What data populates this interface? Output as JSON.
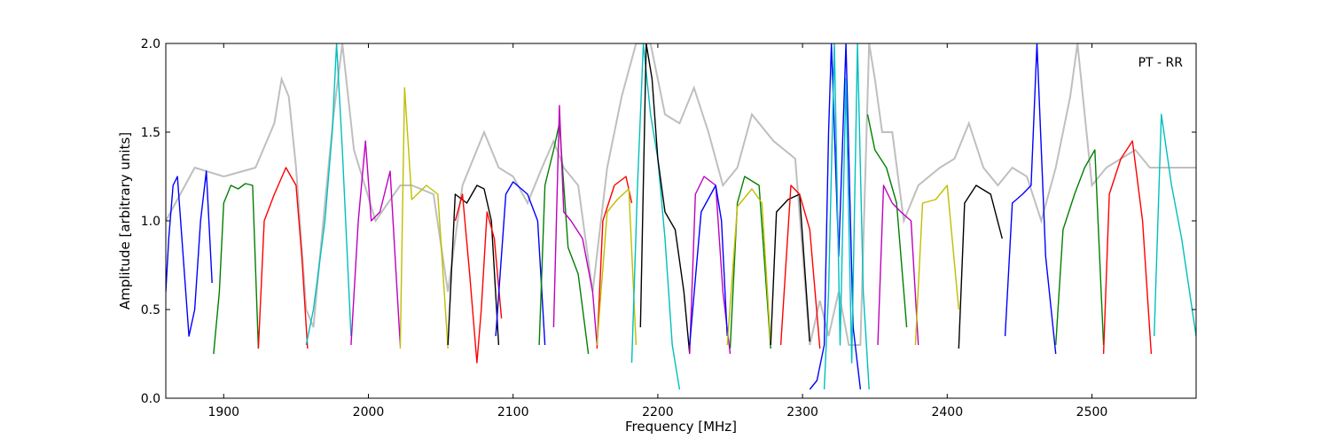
{
  "chart_data": {
    "type": "line",
    "title": "",
    "annotation": "PT - RR",
    "xlabel": "Frequency [MHz]",
    "ylabel": "Amplitude [arbitrary units]",
    "xlim": [
      1860,
      2572
    ],
    "ylim": [
      0,
      2.0
    ],
    "xticks": [
      1900,
      2000,
      2100,
      2200,
      2300,
      2400,
      2500
    ],
    "xtick_labels": [
      "1900",
      "2000",
      "2100",
      "2200",
      "2300",
      "2400",
      "2500"
    ],
    "yticks": [
      0,
      0.5,
      1.0,
      1.5,
      2.0
    ],
    "ytick_labels": [
      "0.0",
      "0.5",
      "1.0",
      "1.5",
      "2.0"
    ],
    "grid": false,
    "background_trace_color": "#bfbfbf",
    "background_trace": {
      "x": [
        1860,
        1880,
        1900,
        1922,
        1935,
        1940,
        1945,
        1950,
        1957,
        1962,
        1970,
        1976,
        1982,
        1990,
        2005,
        2022,
        2030,
        2045,
        2055,
        2065,
        2080,
        2090,
        2100,
        2110,
        2120,
        2128,
        2135,
        2145,
        2155,
        2165,
        2175,
        2185,
        2195,
        2205,
        2215,
        2225,
        2235,
        2245,
        2255,
        2265,
        2280,
        2295,
        2305,
        2312,
        2318,
        2325,
        2332,
        2340,
        2346,
        2350,
        2355,
        2362,
        2370,
        2380,
        2395,
        2405,
        2415,
        2425,
        2435,
        2445,
        2455,
        2465,
        2475,
        2485,
        2490,
        2500,
        2510,
        2520,
        2530,
        2540,
        2572
      ],
      "y": [
        1.0,
        1.3,
        1.25,
        1.3,
        1.55,
        1.8,
        1.7,
        1.3,
        0.5,
        0.4,
        1.1,
        1.6,
        2.0,
        1.4,
        1.0,
        1.2,
        1.2,
        1.15,
        0.6,
        1.2,
        1.5,
        1.3,
        1.25,
        1.1,
        1.3,
        1.45,
        1.3,
        1.2,
        0.6,
        1.3,
        1.7,
        2.0,
        2.0,
        1.6,
        1.55,
        1.75,
        1.5,
        1.2,
        1.3,
        1.6,
        1.45,
        1.35,
        0.3,
        0.55,
        0.35,
        0.6,
        0.3,
        0.3,
        2.0,
        1.8,
        1.5,
        1.5,
        1.0,
        1.2,
        1.3,
        1.35,
        1.55,
        1.3,
        1.2,
        1.3,
        1.25,
        1.0,
        1.3,
        1.7,
        2.0,
        1.2,
        1.3,
        1.35,
        1.4,
        1.3,
        1.3
      ]
    },
    "series": [
      {
        "color": "#0000ff",
        "x": [
          1860,
          1862,
          1865,
          1868,
          1872,
          1876,
          1880,
          1884,
          1888,
          1892
        ],
        "y": [
          0.6,
          0.9,
          1.2,
          1.25,
          0.8,
          0.35,
          0.5,
          1.0,
          1.28,
          0.65
        ]
      },
      {
        "color": "#008000",
        "x": [
          1893,
          1897,
          1900,
          1905,
          1910,
          1915,
          1920,
          1924
        ],
        "y": [
          0.25,
          0.6,
          1.1,
          1.2,
          1.18,
          1.21,
          1.2,
          0.28
        ]
      },
      {
        "color": "#ff0000",
        "x": [
          1924,
          1928,
          1935,
          1943,
          1950,
          1954,
          1958
        ],
        "y": [
          0.28,
          1.0,
          1.15,
          1.3,
          1.2,
          0.8,
          0.28
        ]
      },
      {
        "color": "#00bfbf",
        "x": [
          1957,
          1962,
          1970,
          1975,
          1978,
          1982,
          1988
        ],
        "y": [
          0.3,
          0.5,
          1.0,
          1.5,
          2.0,
          1.4,
          0.35
        ]
      },
      {
        "color": "#bf00bf",
        "x": [
          1988,
          1993,
          1998,
          2002,
          2008,
          2015,
          2022
        ],
        "y": [
          0.3,
          1.0,
          1.45,
          1.0,
          1.05,
          1.28,
          0.3
        ]
      },
      {
        "color": "#bfbf00",
        "x": [
          2022,
          2025,
          2030,
          2040,
          2048,
          2055
        ],
        "y": [
          0.28,
          1.75,
          1.12,
          1.2,
          1.15,
          0.28
        ]
      },
      {
        "color": "#000000",
        "x": [
          2055,
          2060,
          2068,
          2075,
          2080,
          2085,
          2090
        ],
        "y": [
          0.3,
          1.15,
          1.1,
          1.2,
          1.18,
          1.0,
          0.3
        ]
      },
      {
        "color": "#ff0000",
        "x": [
          2060,
          2065,
          2070,
          2075,
          2078,
          2082,
          2087,
          2092
        ],
        "y": [
          1.0,
          1.15,
          0.7,
          0.2,
          0.5,
          1.05,
          0.9,
          0.45
        ]
      },
      {
        "color": "#0000ff",
        "x": [
          2088,
          2095,
          2100,
          2110,
          2117,
          2122
        ],
        "y": [
          0.35,
          1.15,
          1.22,
          1.15,
          1.0,
          0.3
        ]
      },
      {
        "color": "#008000",
        "x": [
          2118,
          2122,
          2128,
          2132,
          2138,
          2145,
          2152
        ],
        "y": [
          0.3,
          1.2,
          1.4,
          1.55,
          0.85,
          0.7,
          0.25
        ]
      },
      {
        "color": "#bf00bf",
        "x": [
          2128,
          2132,
          2135,
          2140,
          2148,
          2155,
          2158
        ],
        "y": [
          0.4,
          1.65,
          1.05,
          1.0,
          0.9,
          0.6,
          0.3
        ]
      },
      {
        "color": "#ff0000",
        "x": [
          2158,
          2162,
          2170,
          2178,
          2182
        ],
        "y": [
          0.28,
          1.0,
          1.2,
          1.25,
          1.1
        ]
      },
      {
        "color": "#bfbf00",
        "x": [
          2158,
          2165,
          2172,
          2180,
          2185
        ],
        "y": [
          0.3,
          1.05,
          1.12,
          1.18,
          0.3
        ]
      },
      {
        "color": "#00bfbf",
        "x": [
          2182,
          2186,
          2190,
          2195,
          2200,
          2205,
          2210,
          2215
        ],
        "y": [
          0.2,
          1.2,
          2.0,
          1.6,
          1.35,
          0.9,
          0.3,
          0.05
        ]
      },
      {
        "color": "#000000",
        "x": [
          2188,
          2192,
          2196,
          2200,
          2205,
          2212,
          2218,
          2222
        ],
        "y": [
          0.4,
          2.0,
          1.8,
          1.35,
          1.05,
          0.95,
          0.6,
          0.25
        ]
      },
      {
        "color": "#bf00bf",
        "x": [
          2222,
          2226,
          2232,
          2240,
          2245,
          2250
        ],
        "y": [
          0.25,
          1.15,
          1.25,
          1.2,
          0.6,
          0.25
        ]
      },
      {
        "color": "#0000ff",
        "x": [
          2222,
          2230,
          2240,
          2244,
          2248
        ],
        "y": [
          0.3,
          1.05,
          1.2,
          1.0,
          0.35
        ]
      },
      {
        "color": "#008000",
        "x": [
          2250,
          2255,
          2260,
          2270,
          2278
        ],
        "y": [
          0.28,
          1.1,
          1.25,
          1.2,
          0.28
        ]
      },
      {
        "color": "#bfbf00",
        "x": [
          2248,
          2255,
          2265,
          2272,
          2278
        ],
        "y": [
          0.3,
          1.08,
          1.18,
          1.1,
          0.3
        ]
      },
      {
        "color": "#000000",
        "x": [
          2278,
          2282,
          2290,
          2298,
          2305
        ],
        "y": [
          0.3,
          1.05,
          1.12,
          1.15,
          0.32
        ]
      },
      {
        "color": "#ff0000",
        "x": [
          2285,
          2292,
          2298,
          2305,
          2312
        ],
        "y": [
          0.3,
          1.2,
          1.15,
          0.95,
          0.28
        ]
      },
      {
        "color": "#0000ff",
        "x": [
          2305,
          2310,
          2315,
          2318,
          2320,
          2325,
          2330,
          2335,
          2340
        ],
        "y": [
          0.05,
          0.1,
          0.3,
          1.5,
          2.0,
          0.8,
          2.0,
          0.4,
          0.05
        ]
      },
      {
        "color": "#00bfbf",
        "x": [
          2315,
          2318,
          2322,
          2326,
          2330,
          2334,
          2338,
          2342,
          2346
        ],
        "y": [
          0.05,
          0.6,
          2.0,
          0.3,
          1.8,
          0.2,
          2.0,
          0.6,
          0.05
        ]
      },
      {
        "color": "#008000",
        "x": [
          2345,
          2350,
          2358,
          2365,
          2372
        ],
        "y": [
          1.6,
          1.4,
          1.3,
          1.1,
          0.4
        ]
      },
      {
        "color": "#bf00bf",
        "x": [
          2352,
          2356,
          2362,
          2368,
          2375,
          2380
        ],
        "y": [
          0.3,
          1.2,
          1.1,
          1.05,
          1.0,
          0.3
        ]
      },
      {
        "color": "#bfbf00",
        "x": [
          2378,
          2383,
          2392,
          2400,
          2408
        ],
        "y": [
          0.3,
          1.1,
          1.12,
          1.2,
          0.5
        ]
      },
      {
        "color": "#000000",
        "x": [
          2408,
          2412,
          2420,
          2430,
          2438
        ],
        "y": [
          0.28,
          1.1,
          1.2,
          1.15,
          0.9
        ]
      },
      {
        "color": "#0000ff",
        "x": [
          2440,
          2445,
          2452,
          2458,
          2462,
          2468,
          2475
        ],
        "y": [
          0.35,
          1.1,
          1.15,
          1.2,
          2.0,
          0.8,
          0.25
        ]
      },
      {
        "color": "#008000",
        "x": [
          2475,
          2480,
          2488,
          2495,
          2502,
          2508
        ],
        "y": [
          0.3,
          0.95,
          1.15,
          1.3,
          1.4,
          0.3
        ]
      },
      {
        "color": "#ff0000",
        "x": [
          2508,
          2512,
          2520,
          2528,
          2535,
          2541
        ],
        "y": [
          0.25,
          1.15,
          1.35,
          1.45,
          1.0,
          0.25
        ]
      },
      {
        "color": "#00bfbf",
        "x": [
          2543,
          2548,
          2555,
          2562,
          2572
        ],
        "y": [
          0.35,
          1.6,
          1.2,
          0.9,
          0.35
        ]
      }
    ]
  }
}
